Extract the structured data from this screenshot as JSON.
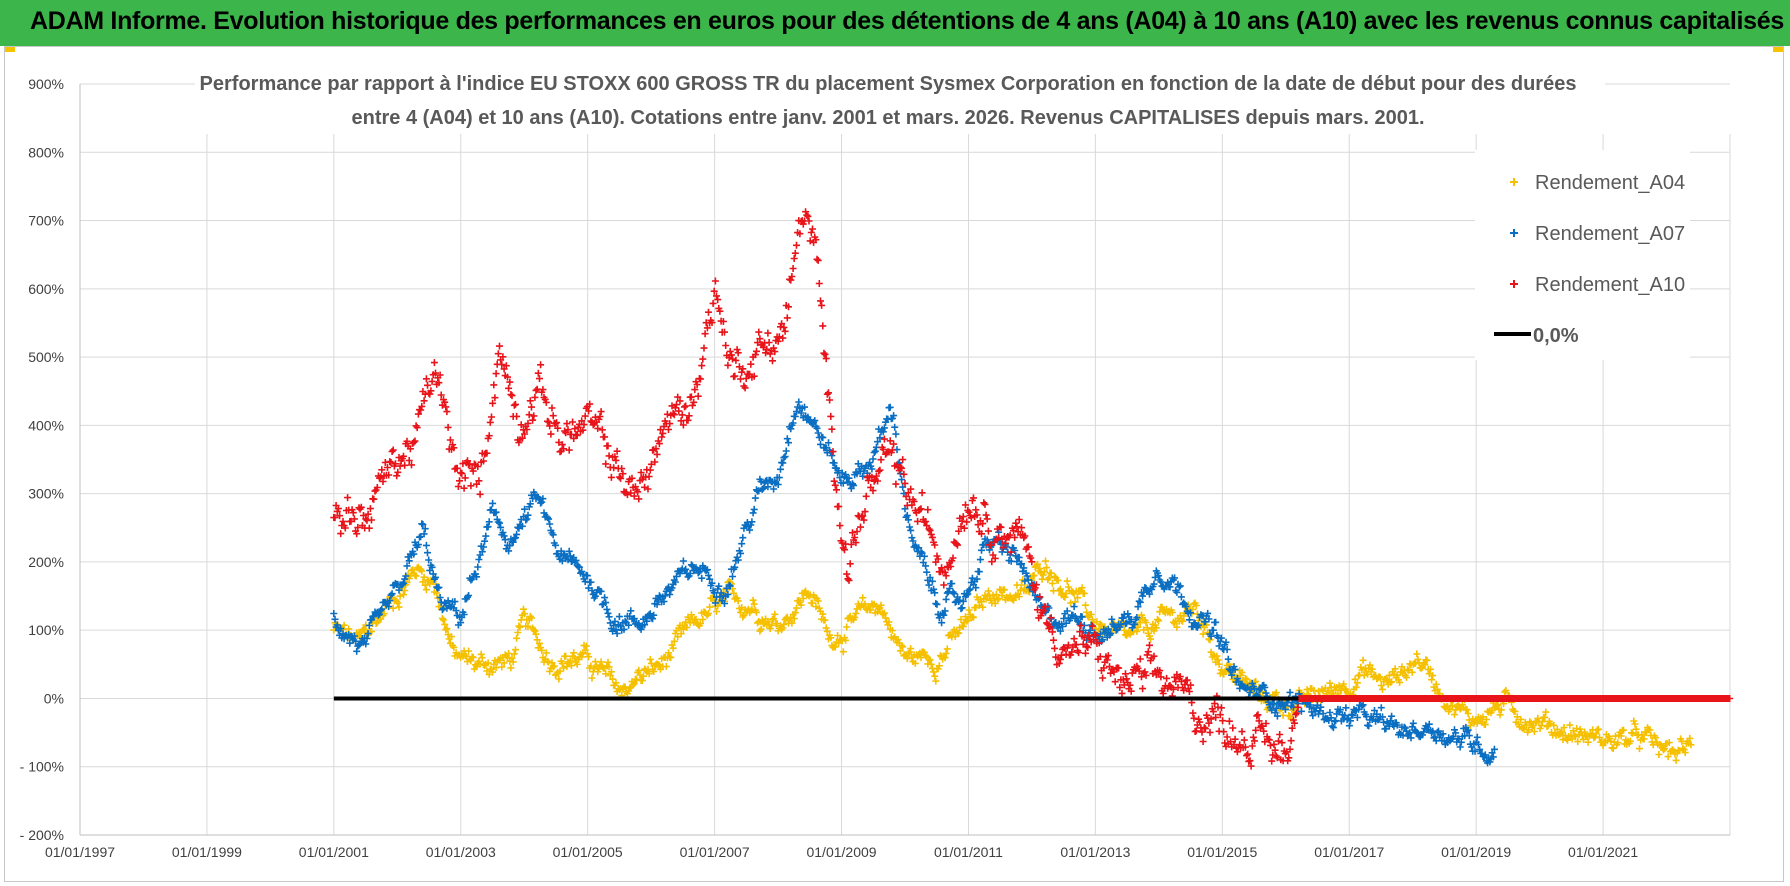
{
  "banner": {
    "title": "ADAM Informe. Evolution historique des performances en euros pour des détentions de 4 ans (A04) à 10 ans (A10) avec les revenus connus capitalisés"
  },
  "colors": {
    "banner_bg": "#3cb54a",
    "a04": "#f5c000",
    "a07": "#0a6fc2",
    "a10": "#e8141a",
    "zero": "#000000",
    "grid": "#d9d9d9"
  },
  "chart_data": {
    "type": "scatter",
    "title_line1": "Performance par rapport à l'indice EU STOXX 600 GROSS TR  du placement Sysmex Corporation en fonction de la date de début pour des durées",
    "title_line2": "entre 4 (A04) et 10 ans (A10).  Cotations entre janv. 2001 et mars. 2026.  Revenus CAPITALISES depuis mars. 2001.",
    "xlabel": "",
    "ylabel": "",
    "x_ticks": [
      "01/01/1997",
      "01/01/1999",
      "01/01/2001",
      "01/01/2003",
      "01/01/2005",
      "01/01/2007",
      "01/01/2009",
      "01/01/2011",
      "01/01/2013",
      "01/01/2015",
      "01/01/2017",
      "01/01/2019",
      "01/01/2021"
    ],
    "xlim": [
      1997.0,
      2023.0
    ],
    "y_ticks": [
      "900%",
      "800%",
      "700%",
      "600%",
      "500%",
      "400%",
      "300%",
      "200%",
      "100%",
      "0%",
      "- 100%",
      "- 200%"
    ],
    "ylim": [
      -200,
      900
    ],
    "grid": true,
    "legend_position": "top-right",
    "series": [
      {
        "name": "Rendement_A04",
        "marker": "+",
        "keypoints": [
          [
            2001.0,
            100
          ],
          [
            2001.4,
            80
          ],
          [
            2001.8,
            130
          ],
          [
            2002.3,
            190
          ],
          [
            2002.6,
            170
          ],
          [
            2002.9,
            60
          ],
          [
            2003.3,
            50
          ],
          [
            2003.8,
            55
          ],
          [
            2004.0,
            110
          ],
          [
            2004.4,
            60
          ],
          [
            2004.9,
            60
          ],
          [
            2005.2,
            40
          ],
          [
            2005.5,
            10
          ],
          [
            2005.8,
            30
          ],
          [
            2006.2,
            50
          ],
          [
            2006.7,
            110
          ],
          [
            2007.2,
            140
          ],
          [
            2007.6,
            140
          ],
          [
            2008.0,
            110
          ],
          [
            2008.5,
            160
          ],
          [
            2008.8,
            90
          ],
          [
            2009.2,
            110
          ],
          [
            2009.6,
            140
          ],
          [
            2010.0,
            60
          ],
          [
            2010.5,
            60
          ],
          [
            2011.0,
            110
          ],
          [
            2011.4,
            160
          ],
          [
            2011.9,
            150
          ],
          [
            2012.2,
            200
          ],
          [
            2012.6,
            160
          ],
          [
            2013.0,
            110
          ],
          [
            2013.5,
            80
          ],
          [
            2014.0,
            110
          ],
          [
            2014.6,
            130
          ],
          [
            2015.0,
            50
          ],
          [
            2015.6,
            0
          ],
          [
            2016.2,
            -10
          ],
          [
            2016.7,
            10
          ],
          [
            2017.2,
            40
          ],
          [
            2017.6,
            20
          ],
          [
            2018.1,
            60
          ],
          [
            2018.4,
            20
          ],
          [
            2018.9,
            -30
          ],
          [
            2019.4,
            -10
          ],
          [
            2019.9,
            -30
          ],
          [
            2020.5,
            -50
          ],
          [
            2021.0,
            -60
          ],
          [
            2021.6,
            -60
          ],
          [
            2022.0,
            -80
          ],
          [
            2022.4,
            -75
          ]
        ]
      },
      {
        "name": "Rendement_A07",
        "marker": "+",
        "keypoints": [
          [
            2001.0,
            120
          ],
          [
            2001.5,
            70
          ],
          [
            2002.0,
            150
          ],
          [
            2002.4,
            240
          ],
          [
            2002.7,
            130
          ],
          [
            2003.0,
            120
          ],
          [
            2003.5,
            260
          ],
          [
            2003.8,
            230
          ],
          [
            2004.2,
            290
          ],
          [
            2004.6,
            200
          ],
          [
            2005.0,
            180
          ],
          [
            2005.4,
            120
          ],
          [
            2005.8,
            110
          ],
          [
            2006.2,
            150
          ],
          [
            2006.7,
            190
          ],
          [
            2007.2,
            170
          ],
          [
            2007.7,
            300
          ],
          [
            2008.0,
            330
          ],
          [
            2008.3,
            450
          ],
          [
            2008.7,
            380
          ],
          [
            2009.0,
            320
          ],
          [
            2009.4,
            340
          ],
          [
            2009.8,
            420
          ],
          [
            2010.1,
            230
          ],
          [
            2010.5,
            140
          ],
          [
            2010.9,
            140
          ],
          [
            2011.3,
            230
          ],
          [
            2011.8,
            200
          ],
          [
            2012.2,
            110
          ],
          [
            2012.7,
            120
          ],
          [
            2013.2,
            100
          ],
          [
            2013.6,
            120
          ],
          [
            2014.0,
            200
          ],
          [
            2014.4,
            150
          ],
          [
            2014.9,
            90
          ],
          [
            2015.3,
            10
          ],
          [
            2016.0,
            0
          ],
          [
            2016.6,
            -20
          ],
          [
            2017.2,
            -30
          ],
          [
            2017.8,
            -50
          ],
          [
            2018.3,
            -40
          ],
          [
            2018.8,
            -60
          ],
          [
            2019.3,
            -75
          ]
        ]
      },
      {
        "name": "Rendement_A10",
        "marker": "+",
        "keypoints": [
          [
            2001.0,
            280
          ],
          [
            2001.5,
            270
          ],
          [
            2001.9,
            340
          ],
          [
            2002.3,
            380
          ],
          [
            2002.6,
            480
          ],
          [
            2002.9,
            330
          ],
          [
            2003.3,
            310
          ],
          [
            2003.6,
            520
          ],
          [
            2003.9,
            410
          ],
          [
            2004.2,
            460
          ],
          [
            2004.6,
            380
          ],
          [
            2005.0,
            400
          ],
          [
            2005.4,
            350
          ],
          [
            2005.8,
            290
          ],
          [
            2006.2,
            400
          ],
          [
            2006.6,
            420
          ],
          [
            2007.0,
            600
          ],
          [
            2007.3,
            480
          ],
          [
            2007.8,
            520
          ],
          [
            2008.1,
            540
          ],
          [
            2008.4,
            720
          ],
          [
            2008.6,
            640
          ],
          [
            2008.8,
            420
          ],
          [
            2009.1,
            200
          ],
          [
            2009.4,
            300
          ],
          [
            2009.8,
            340
          ],
          [
            2010.2,
            270
          ],
          [
            2010.6,
            200
          ],
          [
            2011.0,
            310
          ],
          [
            2011.4,
            260
          ],
          [
            2011.8,
            240
          ],
          [
            2012.2,
            120
          ],
          [
            2012.6,
            70
          ],
          [
            2013.0,
            70
          ],
          [
            2013.4,
            20
          ],
          [
            2013.8,
            20
          ],
          [
            2014.2,
            20
          ],
          [
            2014.6,
            -20
          ],
          [
            2015.0,
            -30
          ],
          [
            2015.5,
            -60
          ],
          [
            2016.0,
            -80
          ],
          [
            2016.2,
            0
          ],
          [
            2023.0,
            0
          ]
        ]
      },
      {
        "name": "0,0%",
        "type": "line",
        "x": [
          2001.0,
          2023.0
        ],
        "y": [
          0,
          0
        ]
      }
    ]
  }
}
